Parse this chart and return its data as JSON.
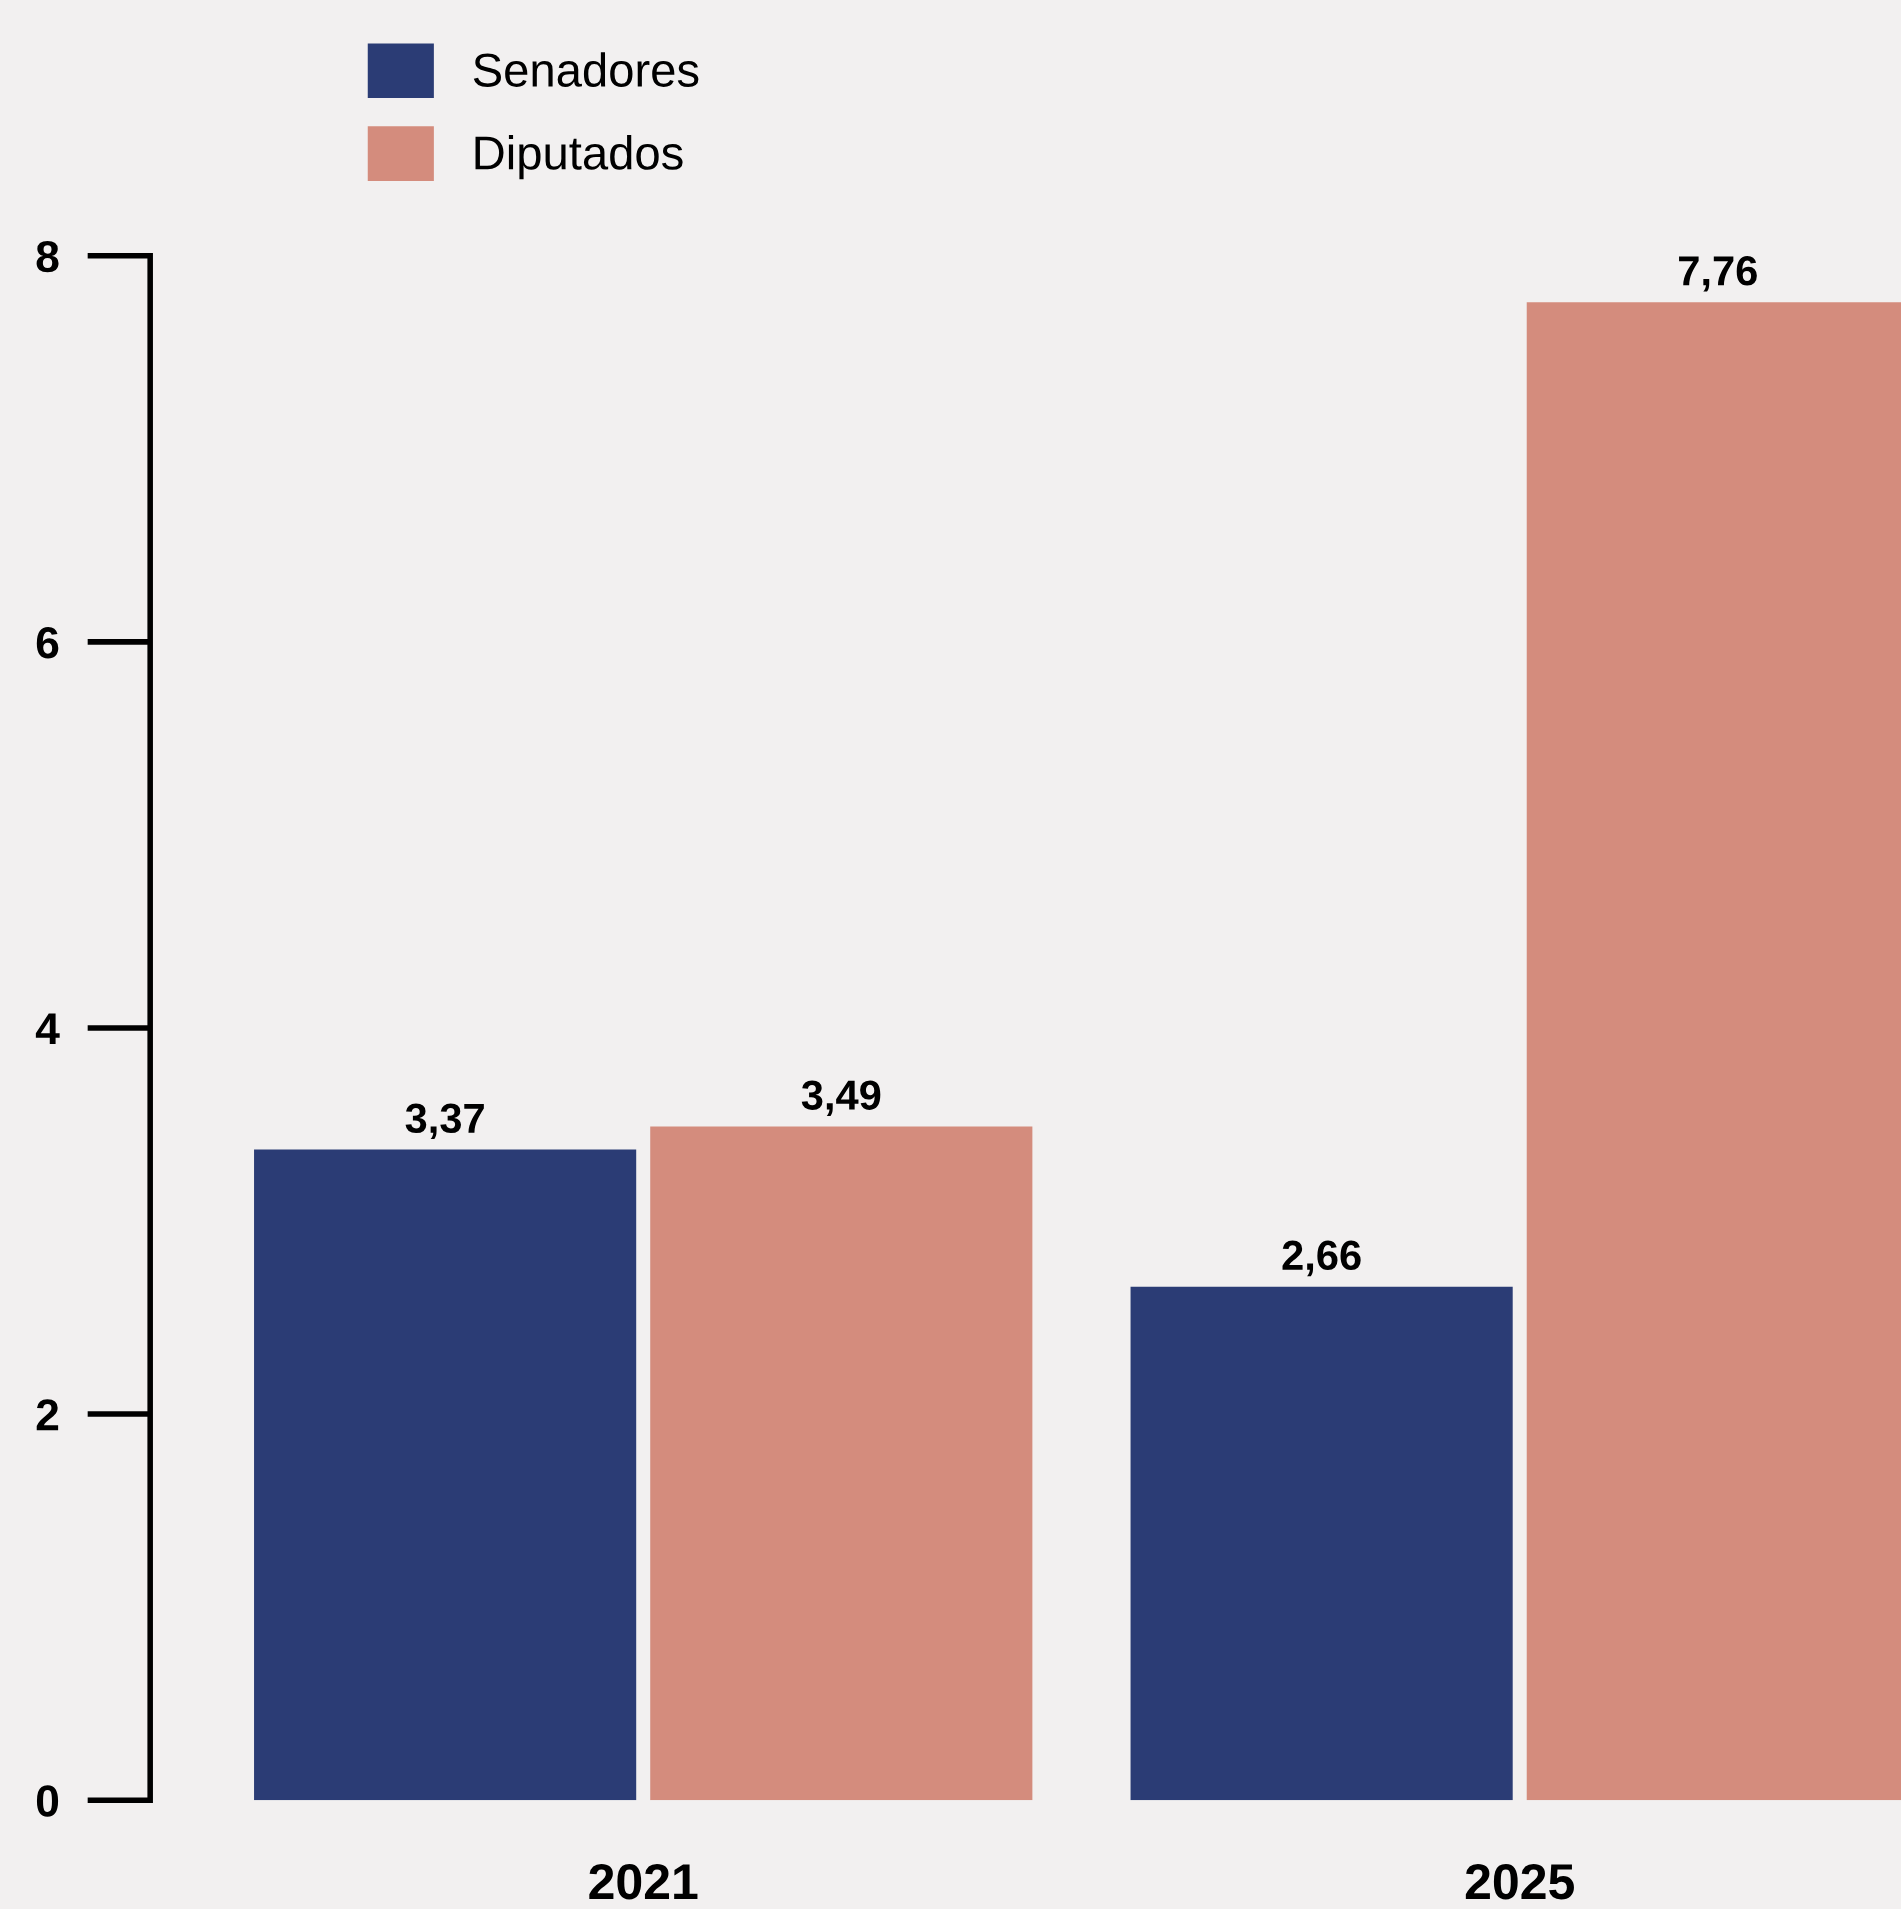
{
  "chart_data": {
    "type": "bar",
    "categories": [
      "2021",
      "2025"
    ],
    "series": [
      {
        "name": "Senadores",
        "color": "#2b3c75",
        "values": [
          3.37,
          2.66
        ],
        "value_labels": [
          "3,37",
          "2,66"
        ]
      },
      {
        "name": "Diputados",
        "color": "#d48c7d",
        "values": [
          3.49,
          7.76
        ],
        "value_labels": [
          "3,49",
          "7,76"
        ]
      }
    ],
    "ylim": [
      0,
      8
    ],
    "yticks": [
      0,
      2,
      4,
      6,
      8
    ],
    "grid": false,
    "legend": "top left"
  }
}
